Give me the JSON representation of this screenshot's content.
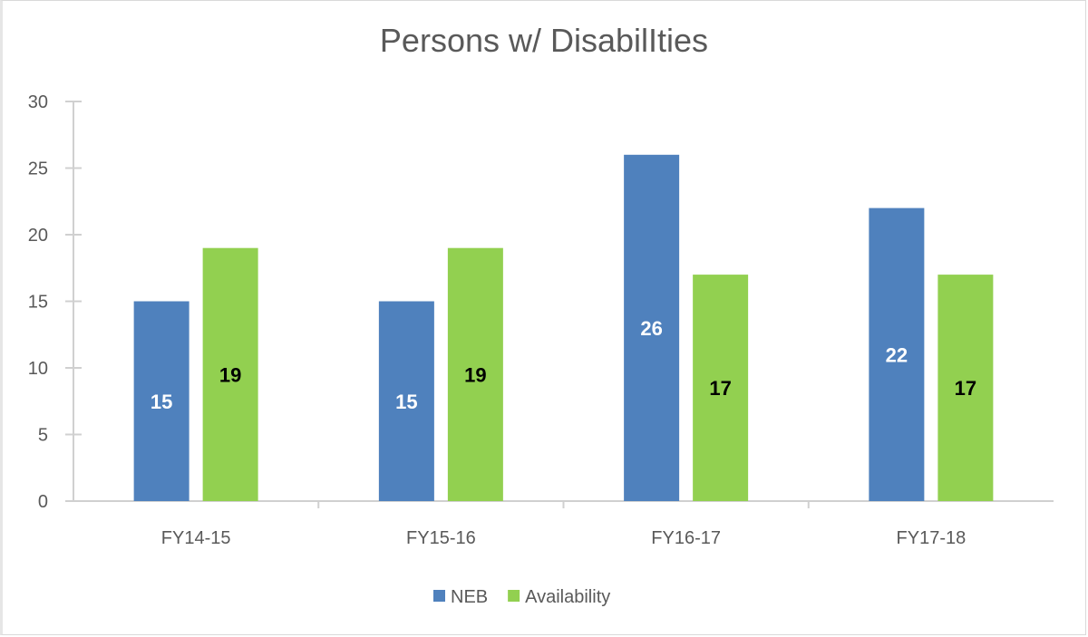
{
  "chart_data": {
    "type": "bar",
    "title": "Persons w/ DisabilIties",
    "categories": [
      "FY14-15",
      "FY15-16",
      "FY16-17",
      "FY17-18"
    ],
    "series": [
      {
        "name": "NEB",
        "values": [
          15,
          15,
          26,
          22
        ],
        "color": "#4F81BD",
        "label_color": "#FFFFFF"
      },
      {
        "name": "Availability",
        "values": [
          19,
          19,
          17,
          17
        ],
        "color": "#92D050",
        "label_color": "#000000"
      }
    ],
    "xlabel": "",
    "ylabel": "",
    "ylim": [
      0,
      30
    ],
    "yticks": [
      0,
      5,
      10,
      15,
      20,
      25,
      30
    ],
    "grid": false,
    "legend_position": "bottom"
  }
}
